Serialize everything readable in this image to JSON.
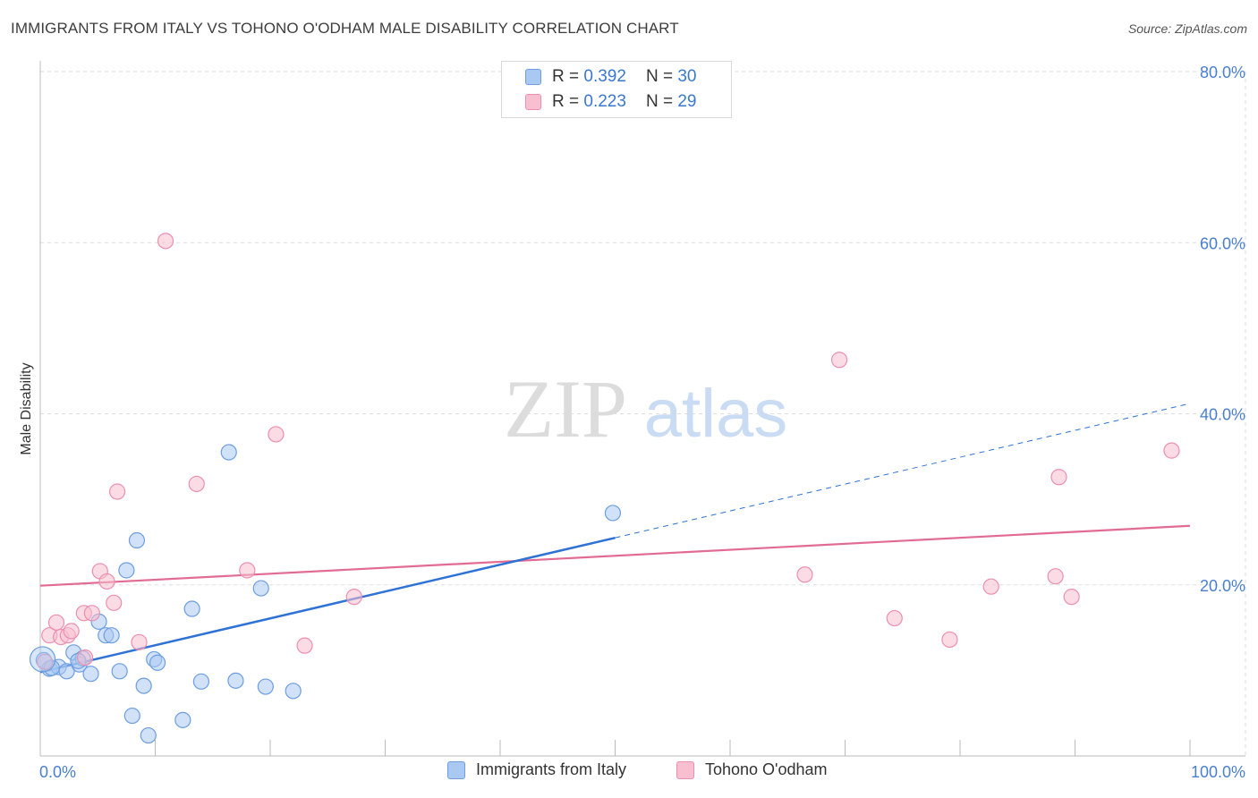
{
  "title": "IMMIGRANTS FROM ITALY VS TOHONO O'ODHAM MALE DISABILITY CORRELATION CHART",
  "source": "Source: ZipAtlas.com",
  "watermark": {
    "zip": "ZIP",
    "atlas": "atlas"
  },
  "colors": {
    "blue_fill": "#a9c9f2",
    "blue_stroke": "#6d9ee0",
    "blue_line": "#2f72d6",
    "pink_fill": "#f7bfd0",
    "pink_stroke": "#ec8fae",
    "pink_line": "#e26b93",
    "grid": "#dddddd",
    "axis_text": "#4a7fcf"
  },
  "legend": {
    "rows": [
      {
        "r_label": "R =",
        "r_value": "0.392",
        "n_label": "N =",
        "n_value": "30"
      },
      {
        "r_label": "R =",
        "r_value": "0.223",
        "n_label": "N =",
        "n_value": "29"
      }
    ]
  },
  "bottom_legend": [
    "Immigrants from Italy",
    "Tohono O'odham"
  ],
  "chart_data": {
    "type": "scatter",
    "title": "IMMIGRANTS FROM ITALY VS TOHONO O'ODHAM MALE DISABILITY CORRELATION CHART",
    "xlabel": "",
    "ylabel": "Male Disability",
    "xlim": [
      0,
      100
    ],
    "ylim": [
      0,
      80
    ],
    "x_tick_labels": [
      "0.0%",
      "100.0%"
    ],
    "y_ticks": [
      20,
      40,
      60,
      80
    ],
    "y_tick_labels": [
      "20.0%",
      "40.0%",
      "60.0%",
      "80.0%"
    ],
    "grid": true,
    "series": [
      {
        "name": "Immigrants from Italy",
        "R": 0.392,
        "N": 30,
        "points": [
          [
            0.3,
            11.2
          ],
          [
            0.8,
            10.2
          ],
          [
            1.6,
            10.4
          ],
          [
            2.3,
            9.9
          ],
          [
            2.9,
            12.1
          ],
          [
            3.4,
            10.7
          ],
          [
            3.7,
            11.4
          ],
          [
            4.4,
            9.6
          ],
          [
            5.1,
            15.7
          ],
          [
            5.7,
            14.1
          ],
          [
            6.2,
            14.1
          ],
          [
            6.9,
            9.9
          ],
          [
            7.5,
            21.7
          ],
          [
            8.0,
            4.7
          ],
          [
            8.4,
            25.2
          ],
          [
            9.0,
            8.2
          ],
          [
            9.4,
            2.4
          ],
          [
            9.9,
            11.3
          ],
          [
            10.2,
            10.9
          ],
          [
            12.4,
            4.2
          ],
          [
            13.2,
            17.2
          ],
          [
            14.0,
            8.7
          ],
          [
            16.4,
            35.5
          ],
          [
            17.0,
            8.8
          ],
          [
            19.2,
            19.6
          ],
          [
            19.6,
            8.1
          ],
          [
            22.0,
            7.6
          ],
          [
            49.8,
            28.4
          ],
          [
            1.0,
            10.3
          ],
          [
            3.3,
            11.1
          ]
        ],
        "trend": {
          "x0": 0,
          "y0": 9.8,
          "x1": 50,
          "y1": 25.5,
          "dash_to_x": 100,
          "dash_to_y": 41.2
        }
      },
      {
        "name": "Tohono O'odham",
        "R": 0.223,
        "N": 29,
        "points": [
          [
            0.4,
            11.0
          ],
          [
            0.8,
            14.1
          ],
          [
            1.4,
            15.6
          ],
          [
            1.8,
            13.9
          ],
          [
            2.4,
            14.1
          ],
          [
            2.7,
            14.6
          ],
          [
            3.9,
            11.5
          ],
          [
            3.8,
            16.7
          ],
          [
            4.5,
            16.7
          ],
          [
            5.2,
            21.6
          ],
          [
            5.8,
            20.4
          ],
          [
            6.4,
            17.9
          ],
          [
            6.7,
            30.9
          ],
          [
            8.6,
            13.3
          ],
          [
            10.9,
            60.2
          ],
          [
            13.6,
            31.8
          ],
          [
            18.0,
            21.7
          ],
          [
            20.5,
            37.6
          ],
          [
            23.0,
            12.9
          ],
          [
            27.3,
            18.6
          ],
          [
            66.5,
            21.2
          ],
          [
            69.5,
            46.3
          ],
          [
            74.3,
            16.1
          ],
          [
            79.1,
            13.6
          ],
          [
            82.7,
            19.8
          ],
          [
            88.3,
            21.0
          ],
          [
            89.7,
            18.6
          ],
          [
            88.6,
            32.6
          ],
          [
            98.4,
            35.7
          ]
        ],
        "trend": {
          "x0": 0,
          "y0": 19.9,
          "x1": 100,
          "y1": 26.9
        }
      }
    ]
  }
}
